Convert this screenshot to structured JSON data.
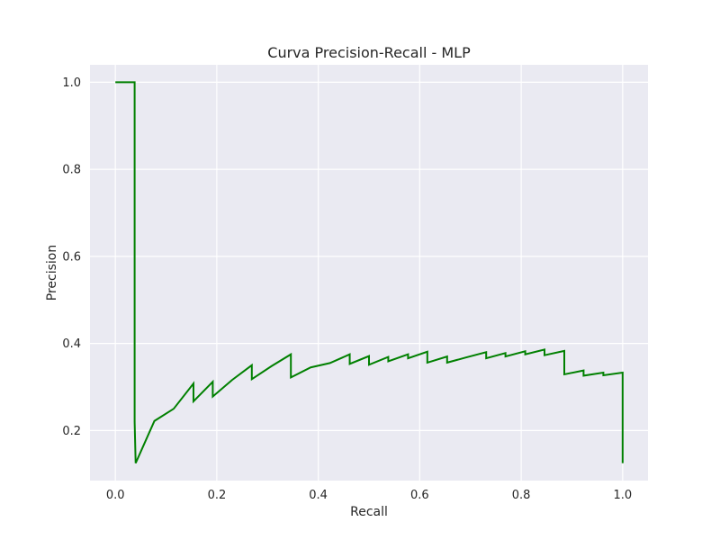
{
  "chart_data": {
    "type": "line",
    "title": "Curva Precision-Recall - MLP",
    "xlabel": "Recall",
    "ylabel": "Precision",
    "xlim": [
      -0.05,
      1.05
    ],
    "ylim": [
      0.085,
      1.04
    ],
    "xticks": [
      0.0,
      0.2,
      0.4,
      0.6,
      0.8,
      1.0
    ],
    "xtick_labels": [
      "0.0",
      "0.2",
      "0.4",
      "0.6",
      "0.8",
      "1.0"
    ],
    "yticks": [
      0.2,
      0.4,
      0.6,
      0.8,
      1.0
    ],
    "ytick_labels": [
      "0.2",
      "0.4",
      "0.6",
      "0.8",
      "1.0"
    ],
    "grid": true,
    "background": "#eaeaf2",
    "line_color": "#008000",
    "series": [
      {
        "x": [
          0.0,
          0.038,
          0.038,
          0.04,
          0.077,
          0.115,
          0.154,
          0.154,
          0.192,
          0.192,
          0.23,
          0.269,
          0.269,
          0.308,
          0.346,
          0.346,
          0.385,
          0.423,
          0.462,
          0.462,
          0.5,
          0.5,
          0.538,
          0.538,
          0.577,
          0.577,
          0.615,
          0.615,
          0.654,
          0.654,
          0.692,
          0.731,
          0.731,
          0.769,
          0.769,
          0.808,
          0.808,
          0.846,
          0.846,
          0.885,
          0.885,
          0.923,
          0.923,
          0.962,
          0.962,
          1.0,
          1.0
        ],
        "y": [
          1.0,
          1.0,
          0.22,
          0.125,
          0.222,
          0.25,
          0.308,
          0.267,
          0.312,
          0.278,
          0.316,
          0.35,
          0.318,
          0.348,
          0.375,
          0.322,
          0.345,
          0.355,
          0.375,
          0.353,
          0.371,
          0.351,
          0.369,
          0.359,
          0.375,
          0.366,
          0.381,
          0.356,
          0.37,
          0.356,
          0.368,
          0.38,
          0.366,
          0.378,
          0.37,
          0.382,
          0.375,
          0.386,
          0.373,
          0.383,
          0.329,
          0.338,
          0.326,
          0.333,
          0.327,
          0.333,
          0.125
        ]
      }
    ]
  }
}
